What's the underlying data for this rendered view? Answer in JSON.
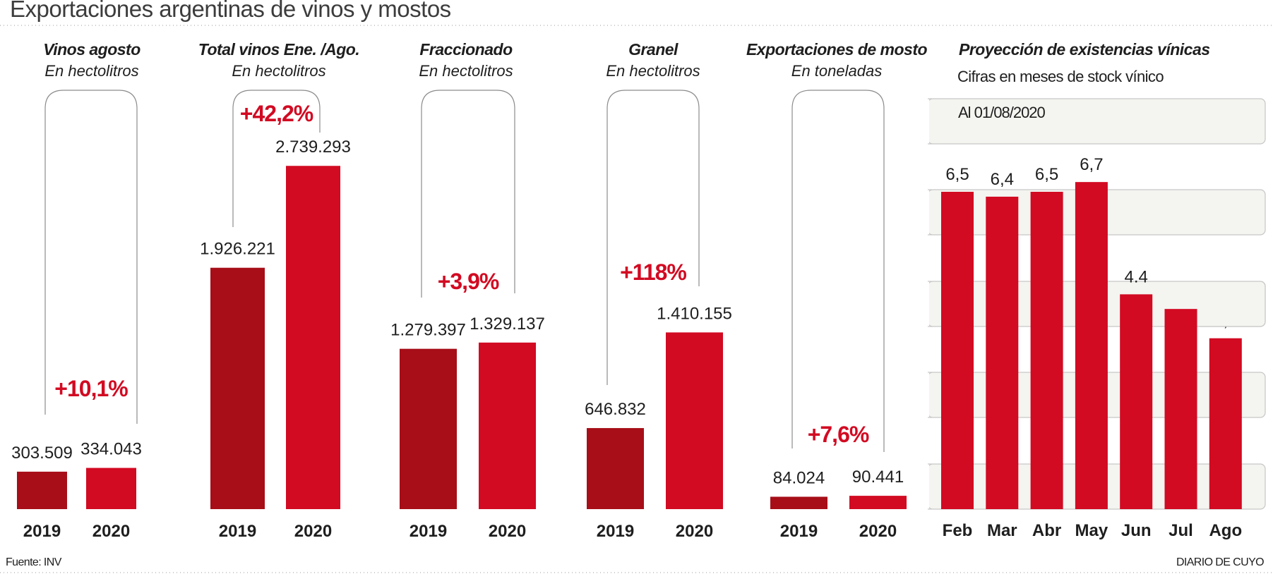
{
  "header": {
    "title": "Exportaciones argentinas de vinos y mostos"
  },
  "colors": {
    "year_2019": "#a70e18",
    "year_2020": "#d20a22",
    "pct": "#d20a22",
    "band": "#f4f4f0"
  },
  "chart_data": [
    {
      "type": "bar",
      "title": "Vinos agosto",
      "subtitle": "En hectolitros",
      "categories": [
        "2019",
        "2020"
      ],
      "values": [
        303509,
        334043
      ],
      "value_labels": [
        "303.509",
        "334.043"
      ],
      "change_label": "+10,1%"
    },
    {
      "type": "bar",
      "title": "Total vinos Ene. /Ago.",
      "subtitle": "En hectolitros",
      "categories": [
        "2019",
        "2020"
      ],
      "values": [
        1926221,
        2739293
      ],
      "value_labels": [
        "1.926.221",
        "2.739.293"
      ],
      "change_label": "+42,2%"
    },
    {
      "type": "bar",
      "title": "Fraccionado",
      "subtitle": "En hectolitros",
      "categories": [
        "2019",
        "2020"
      ],
      "values": [
        1279397,
        1329137
      ],
      "value_labels": [
        "1.279.397",
        "1.329.137"
      ],
      "change_label": "+3,9%"
    },
    {
      "type": "bar",
      "title": "Granel",
      "subtitle": "En hectolitros",
      "categories": [
        "2019",
        "2020"
      ],
      "values": [
        646832,
        1410155
      ],
      "value_labels": [
        "646.832",
        "1.410.155"
      ],
      "change_label": "+118%"
    },
    {
      "type": "bar",
      "title": "Exportaciones de mosto",
      "subtitle": "En toneladas",
      "categories": [
        "2019",
        "2020"
      ],
      "values": [
        84024,
        90441
      ],
      "value_labels": [
        "84.024",
        "90.441"
      ],
      "change_label": "+7,6%"
    },
    {
      "type": "bar",
      "title": "Proyección de existencias vínicas",
      "subtitle": "Cifras en meses de stock vínico",
      "note": "Al 01/08/2020",
      "categories": [
        "Feb",
        "Mar",
        "Abr",
        "May",
        "Jun",
        "Jul",
        "Ago"
      ],
      "values": [
        6.5,
        6.4,
        6.5,
        6.7,
        4.4,
        4.1,
        3.5
      ],
      "value_labels": [
        "6,5",
        "6,4",
        "6,5",
        "6,7",
        "4.4",
        "",
        "3,5"
      ],
      "ylim": [
        0,
        7.5
      ]
    }
  ],
  "footer": {
    "source": "Fuente: INV",
    "credit": "DIARIO DE CUYO"
  }
}
